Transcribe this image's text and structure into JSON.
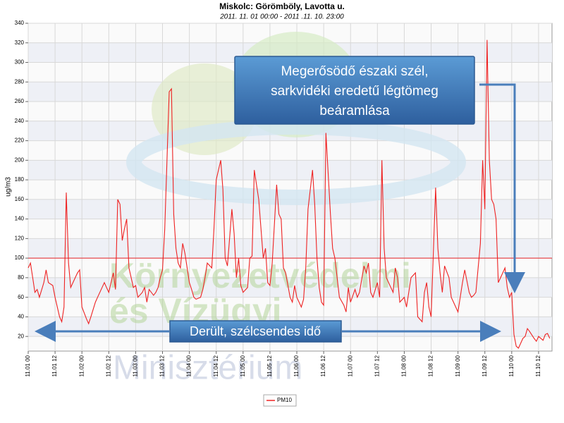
{
  "chart_data": {
    "type": "line",
    "title": "Miskolc: Görömböly, Lavotta u.",
    "subtitle": "2011. 11. 01 00:00 - 2011 .11. 10. 23:00",
    "y_label": "ug/m3",
    "xlim": [
      0,
      234
    ],
    "ylim": [
      5,
      340
    ],
    "yticks": [
      20,
      40,
      60,
      80,
      100,
      120,
      140,
      160,
      180,
      200,
      220,
      240,
      260,
      280,
      300,
      320,
      340
    ],
    "xticks": [
      {
        "value": 0,
        "label": "11.01 00"
      },
      {
        "value": 12,
        "label": "11.01 12"
      },
      {
        "value": 24,
        "label": "11.02 00"
      },
      {
        "value": 36,
        "label": "11.02 12"
      },
      {
        "value": 48,
        "label": "11.03 00"
      },
      {
        "value": 60,
        "label": "11.03 12"
      },
      {
        "value": 72,
        "label": "11.04 00"
      },
      {
        "value": 84,
        "label": "11.04 12"
      },
      {
        "value": 96,
        "label": "11.05 00"
      },
      {
        "value": 108,
        "label": "11.05 12"
      },
      {
        "value": 120,
        "label": "11.06 00"
      },
      {
        "value": 132,
        "label": "11.06 12"
      },
      {
        "value": 144,
        "label": "11.07 00"
      },
      {
        "value": 156,
        "label": "11.07 12"
      },
      {
        "value": 168,
        "label": "11.08 00"
      },
      {
        "value": 180,
        "label": "11.08 12"
      },
      {
        "value": 192,
        "label": "11.09 00"
      },
      {
        "value": 204,
        "label": "11.09 12"
      },
      {
        "value": 216,
        "label": "11.10 00"
      },
      {
        "value": 228,
        "label": "11.10 12"
      }
    ],
    "grid": true,
    "threshold": {
      "value": 100,
      "color": "#e8232a"
    },
    "series": [
      {
        "name": "PM10",
        "color": "#ee2222",
        "x": [
          0,
          1,
          2,
          3,
          4,
          5,
          7,
          8,
          9,
          11,
          12,
          14,
          15,
          16,
          17,
          18,
          19,
          21,
          22,
          23,
          24,
          26,
          27,
          28,
          30,
          31,
          33,
          34,
          35,
          36,
          38,
          39,
          40,
          41,
          42,
          43,
          44,
          45,
          47,
          48,
          49,
          51,
          52,
          53,
          54,
          56,
          57,
          58,
          59,
          60,
          61,
          63,
          64,
          65,
          66,
          67,
          68,
          69,
          70,
          72,
          73,
          74,
          75,
          77,
          78,
          79,
          80,
          82,
          83,
          84,
          86,
          87,
          88,
          89,
          91,
          92,
          93,
          94,
          95,
          96,
          98,
          99,
          100,
          101,
          103,
          104,
          105,
          106,
          107,
          108,
          109,
          111,
          112,
          113,
          114,
          115,
          117,
          118,
          119,
          120,
          122,
          123,
          124,
          125,
          127,
          128,
          129,
          130,
          131,
          132,
          133,
          135,
          136,
          137,
          138,
          139,
          141,
          142,
          143,
          144,
          146,
          147,
          148,
          150,
          151,
          152,
          153,
          154,
          156,
          157,
          158,
          159,
          160,
          162,
          163,
          164,
          165,
          166,
          168,
          169,
          170,
          171,
          173,
          174,
          176,
          177,
          178,
          179,
          180,
          182,
          183,
          184,
          185,
          186,
          188,
          189,
          190,
          192,
          193,
          194,
          195,
          197,
          198,
          199,
          200,
          202,
          203,
          204,
          205,
          206,
          207,
          208,
          209,
          210,
          211,
          213,
          214,
          215,
          216,
          217,
          218,
          219,
          221,
          222,
          223,
          224,
          226,
          227,
          228,
          230,
          231,
          232,
          233
        ],
        "values": [
          90,
          95,
          80,
          65,
          68,
          60,
          75,
          88,
          75,
          72,
          60,
          40,
          35,
          50,
          167,
          95,
          70,
          80,
          85,
          88,
          50,
          38,
          33,
          40,
          55,
          60,
          70,
          75,
          70,
          65,
          85,
          68,
          160,
          155,
          118,
          130,
          140,
          90,
          70,
          72,
          60,
          65,
          70,
          55,
          68,
          62,
          65,
          70,
          80,
          88,
          130,
          270,
          273,
          145,
          110,
          95,
          90,
          115,
          105,
          75,
          68,
          60,
          58,
          60,
          68,
          80,
          95,
          90,
          130,
          180,
          200,
          170,
          100,
          92,
          150,
          125,
          80,
          100,
          72,
          65,
          70,
          100,
          102,
          190,
          160,
          130,
          100,
          110,
          75,
          72,
          95,
          175,
          145,
          140,
          90,
          85,
          60,
          55,
          72,
          60,
          50,
          58,
          90,
          150,
          190,
          155,
          100,
          70,
          55,
          52,
          228,
          145,
          110,
          100,
          80,
          60,
          52,
          45,
          70,
          55,
          68,
          60,
          65,
          92,
          85,
          95,
          65,
          60,
          75,
          60,
          200,
          110,
          80,
          70,
          65,
          90,
          80,
          55,
          60,
          50,
          65,
          80,
          85,
          40,
          35,
          65,
          75,
          50,
          40,
          172,
          110,
          85,
          65,
          92,
          80,
          60,
          55,
          45,
          60,
          75,
          88,
          65,
          60,
          62,
          65,
          115,
          200,
          150,
          323,
          200,
          160,
          155,
          140,
          75,
          80,
          90,
          70,
          60,
          65,
          22,
          10,
          8,
          18,
          20,
          28,
          25,
          18,
          15,
          20,
          16,
          22,
          23,
          18
        ]
      }
    ],
    "annotations": [
      {
        "lines": [
          "Megerősödő északi szél,",
          "sarkvidéki eredetű légtömeg",
          "beáramlása"
        ]
      },
      {
        "lines": [
          "Derült, szélcsendes idő"
        ]
      }
    ],
    "watermark": [
      "Környezetvédelmi",
      "és Vízügyi",
      "Minisztérium"
    ]
  }
}
